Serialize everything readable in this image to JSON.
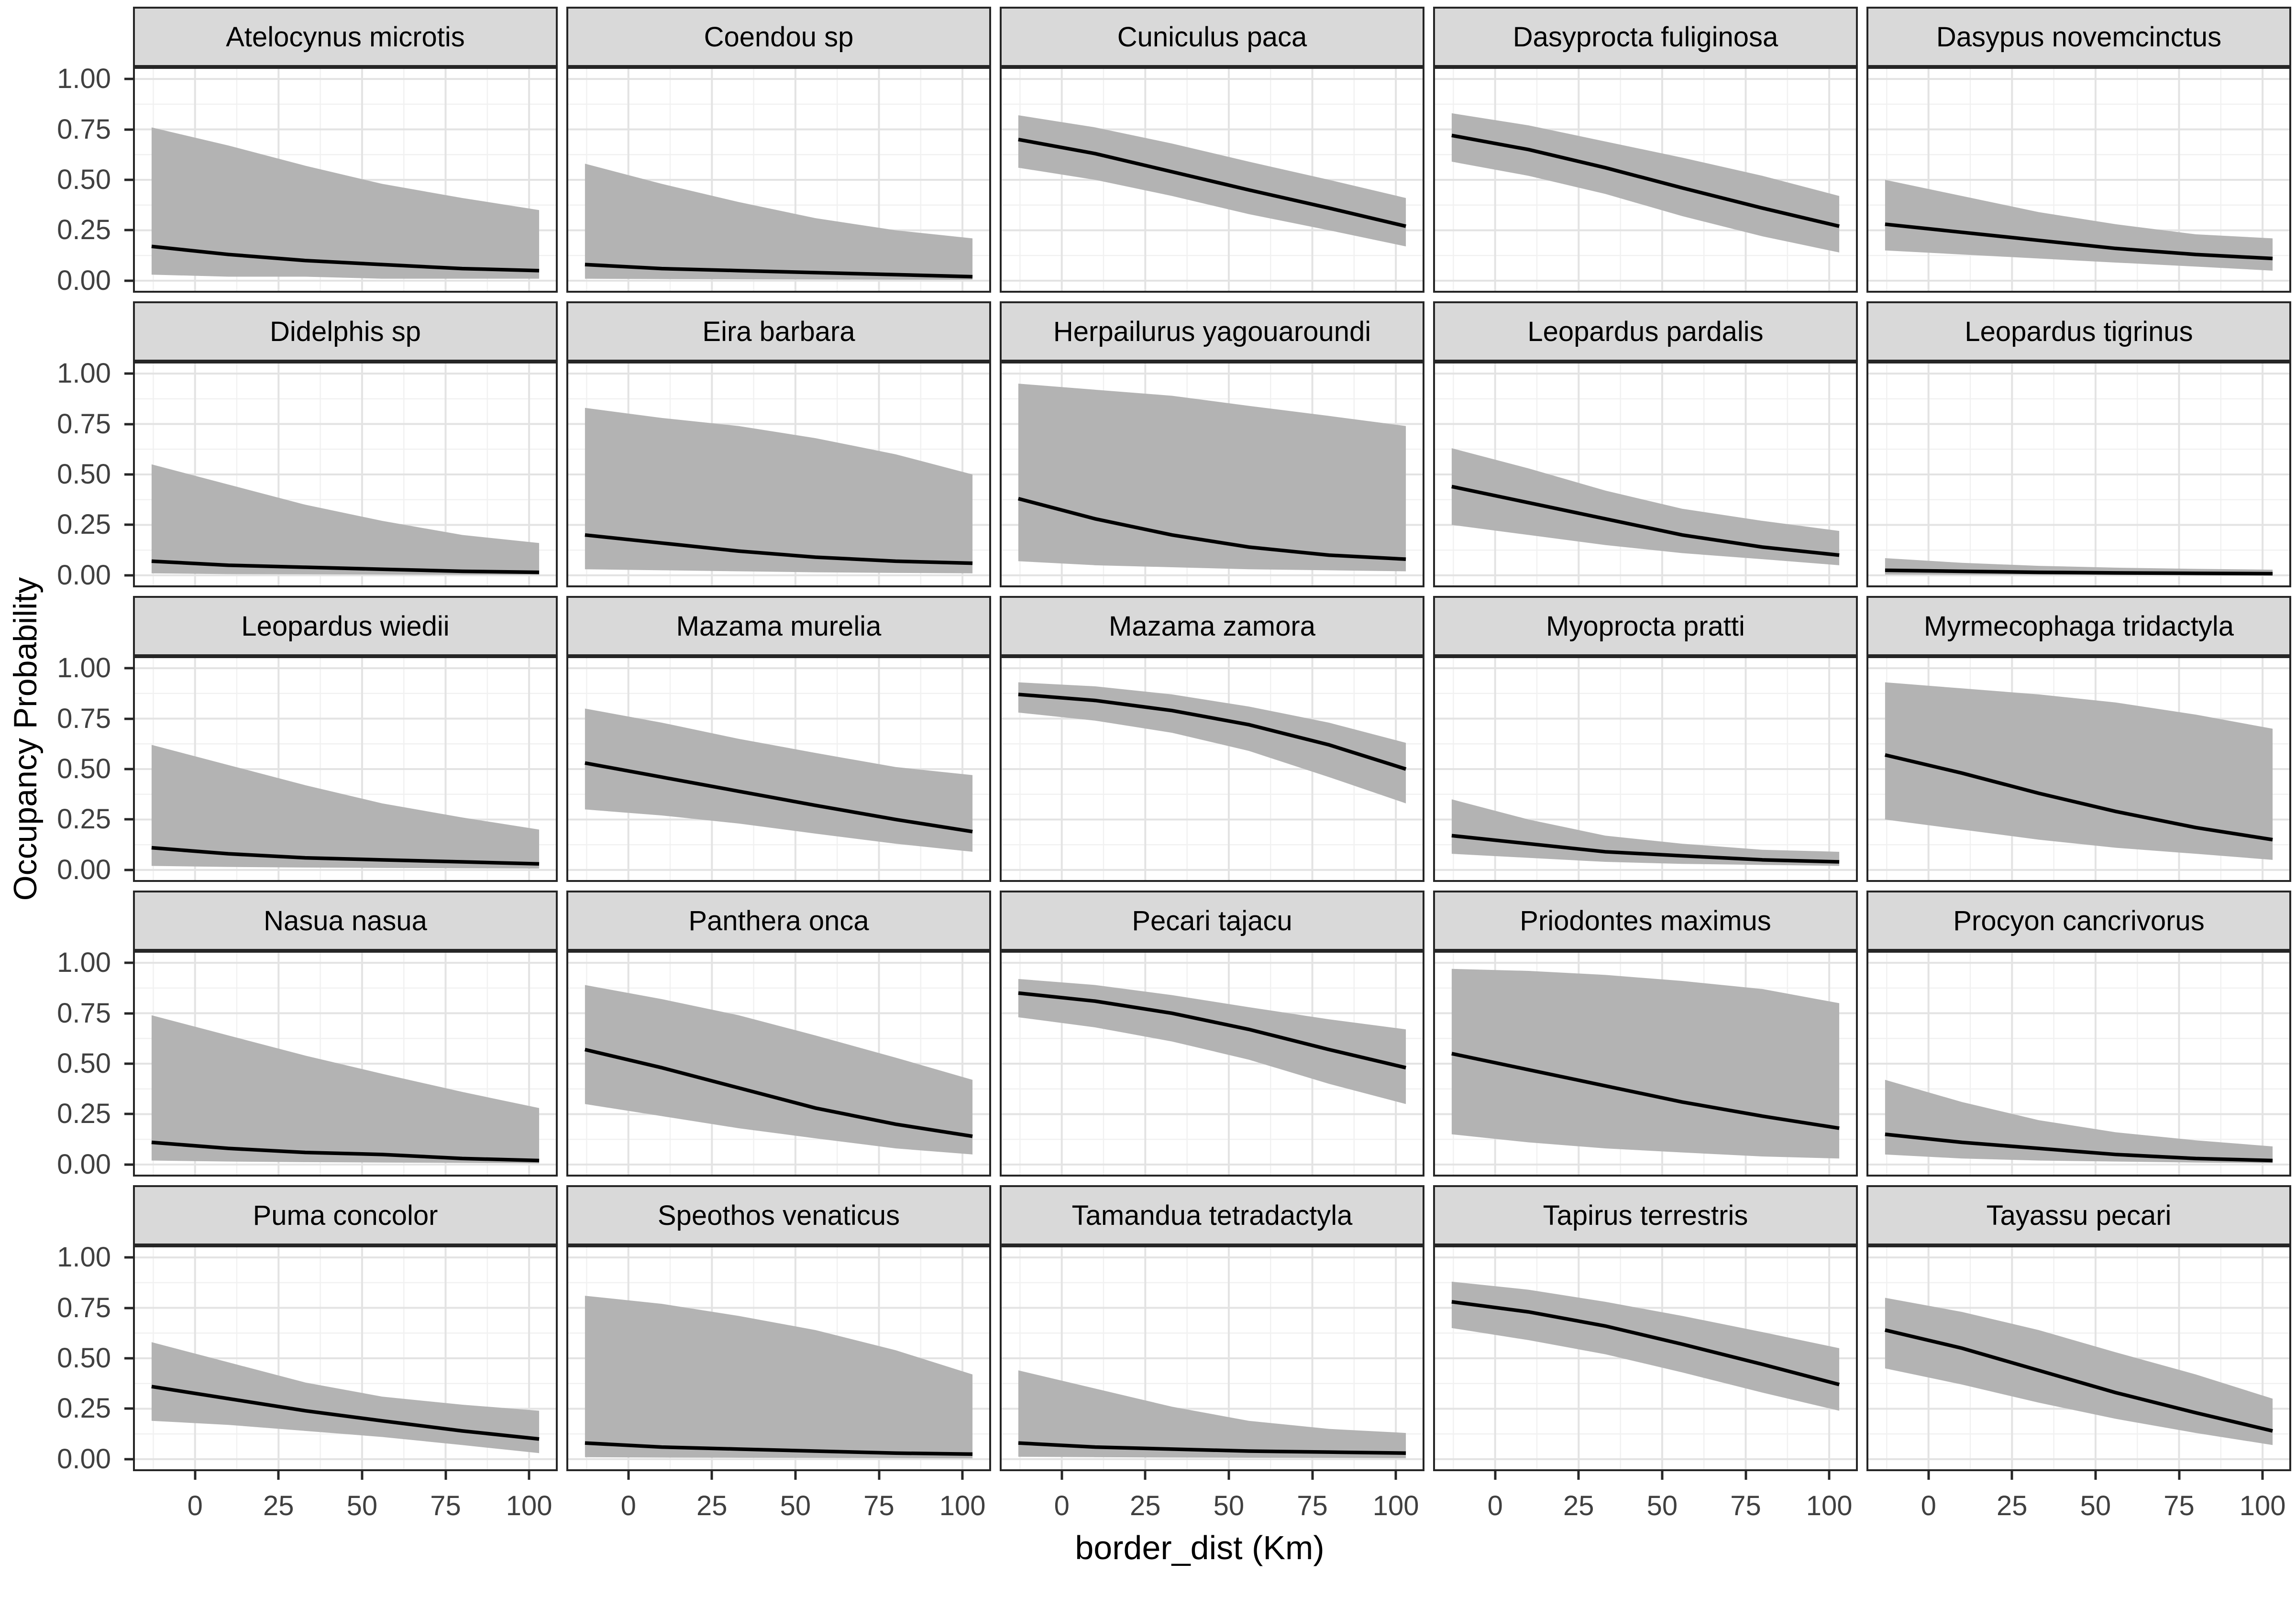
{
  "figure": {
    "y_axis_title": "Occupancy Probability",
    "x_axis_title": "border_dist (Km)",
    "y_ticks": [
      "1.00",
      "0.75",
      "0.50",
      "0.25",
      "0.00"
    ],
    "x_ticks": [
      "0",
      "25",
      "50",
      "75",
      "100"
    ],
    "colors": {
      "ribbon": "#b3b3b3",
      "mean_line": "#000000",
      "strip_bg": "#d9d9d9",
      "panel_border": "#262626",
      "grid_major": "#e3e3e3",
      "grid_minor": "#f1f1f1",
      "tick_label": "#404040"
    }
  },
  "chart_data": {
    "type": "area",
    "title": "",
    "xlabel": "border_dist (Km)",
    "ylabel": "Occupancy Probability",
    "x_axis_ticks": [
      0,
      25,
      50,
      75,
      100
    ],
    "y_axis_ticks": [
      0.0,
      0.25,
      0.5,
      0.75,
      1.0
    ],
    "xlim": [
      -18,
      108
    ],
    "ylim": [
      -0.05,
      1.05
    ],
    "grid": true,
    "legend": "none",
    "x": [
      -13,
      10,
      33,
      56,
      80,
      103
    ],
    "facets": [
      {
        "species": "Atelocynus microtis",
        "mean": [
          0.17,
          0.13,
          0.1,
          0.08,
          0.06,
          0.05
        ],
        "upper": [
          0.76,
          0.67,
          0.57,
          0.48,
          0.41,
          0.35
        ],
        "lower": [
          0.03,
          0.02,
          0.02,
          0.01,
          0.01,
          0.01
        ]
      },
      {
        "species": "Coendou sp",
        "mean": [
          0.08,
          0.06,
          0.05,
          0.04,
          0.03,
          0.02
        ],
        "upper": [
          0.58,
          0.48,
          0.39,
          0.31,
          0.25,
          0.21
        ],
        "lower": [
          0.01,
          0.008,
          0.007,
          0.006,
          0.005,
          0.005
        ]
      },
      {
        "species": "Cuniculus paca",
        "mean": [
          0.7,
          0.63,
          0.54,
          0.45,
          0.36,
          0.27
        ],
        "upper": [
          0.82,
          0.76,
          0.68,
          0.59,
          0.5,
          0.41
        ],
        "lower": [
          0.56,
          0.5,
          0.42,
          0.33,
          0.25,
          0.17
        ]
      },
      {
        "species": "Dasyprocta fuliginosa",
        "mean": [
          0.72,
          0.65,
          0.56,
          0.46,
          0.36,
          0.27
        ],
        "upper": [
          0.83,
          0.77,
          0.69,
          0.61,
          0.52,
          0.42
        ],
        "lower": [
          0.59,
          0.52,
          0.43,
          0.32,
          0.22,
          0.14
        ]
      },
      {
        "species": "Dasypus novemcinctus",
        "mean": [
          0.28,
          0.24,
          0.2,
          0.16,
          0.13,
          0.11
        ],
        "upper": [
          0.5,
          0.42,
          0.34,
          0.28,
          0.23,
          0.21
        ],
        "lower": [
          0.15,
          0.13,
          0.11,
          0.09,
          0.07,
          0.05
        ]
      },
      {
        "species": "Didelphis sp",
        "mean": [
          0.07,
          0.05,
          0.04,
          0.03,
          0.02,
          0.015
        ],
        "upper": [
          0.55,
          0.45,
          0.35,
          0.27,
          0.2,
          0.16
        ],
        "lower": [
          0.01,
          0.006,
          0.005,
          0.004,
          0.003,
          0.003
        ]
      },
      {
        "species": "Eira barbara",
        "mean": [
          0.2,
          0.16,
          0.12,
          0.09,
          0.07,
          0.06
        ],
        "upper": [
          0.83,
          0.78,
          0.74,
          0.68,
          0.6,
          0.5
        ],
        "lower": [
          0.03,
          0.025,
          0.02,
          0.015,
          0.012,
          0.01
        ]
      },
      {
        "species": "Herpailurus yagouaroundi",
        "mean": [
          0.38,
          0.28,
          0.2,
          0.14,
          0.1,
          0.08
        ],
        "upper": [
          0.95,
          0.92,
          0.89,
          0.84,
          0.79,
          0.74
        ],
        "lower": [
          0.07,
          0.05,
          0.04,
          0.03,
          0.025,
          0.02
        ]
      },
      {
        "species": "Leopardus pardalis",
        "mean": [
          0.44,
          0.36,
          0.28,
          0.2,
          0.14,
          0.1
        ],
        "upper": [
          0.63,
          0.53,
          0.42,
          0.33,
          0.27,
          0.22
        ],
        "lower": [
          0.25,
          0.2,
          0.15,
          0.11,
          0.08,
          0.05
        ]
      },
      {
        "species": "Leopardus tigrinus",
        "mean": [
          0.025,
          0.02,
          0.015,
          0.012,
          0.01,
          0.008
        ],
        "upper": [
          0.085,
          0.062,
          0.047,
          0.038,
          0.032,
          0.028
        ],
        "lower": [
          0.004,
          0.003,
          0.003,
          0.002,
          0.002,
          0.002
        ]
      },
      {
        "species": "Leopardus wiedii",
        "mean": [
          0.11,
          0.08,
          0.06,
          0.05,
          0.04,
          0.03
        ],
        "upper": [
          0.62,
          0.52,
          0.42,
          0.33,
          0.26,
          0.2
        ],
        "lower": [
          0.02,
          0.015,
          0.012,
          0.01,
          0.008,
          0.007
        ]
      },
      {
        "species": "Mazama murelia",
        "mean": [
          0.53,
          0.46,
          0.39,
          0.32,
          0.25,
          0.19
        ],
        "upper": [
          0.8,
          0.73,
          0.65,
          0.58,
          0.51,
          0.47
        ],
        "lower": [
          0.3,
          0.27,
          0.23,
          0.18,
          0.13,
          0.09
        ]
      },
      {
        "species": "Mazama zamora",
        "mean": [
          0.87,
          0.84,
          0.79,
          0.72,
          0.62,
          0.5
        ],
        "upper": [
          0.93,
          0.91,
          0.87,
          0.81,
          0.73,
          0.63
        ],
        "lower": [
          0.78,
          0.74,
          0.68,
          0.59,
          0.46,
          0.33
        ]
      },
      {
        "species": "Myoprocta pratti",
        "mean": [
          0.17,
          0.13,
          0.09,
          0.07,
          0.05,
          0.04
        ],
        "upper": [
          0.35,
          0.25,
          0.17,
          0.13,
          0.1,
          0.09
        ],
        "lower": [
          0.08,
          0.06,
          0.04,
          0.03,
          0.025,
          0.02
        ]
      },
      {
        "species": "Myrmecophaga tridactyla",
        "mean": [
          0.57,
          0.48,
          0.38,
          0.29,
          0.21,
          0.15
        ],
        "upper": [
          0.93,
          0.9,
          0.87,
          0.83,
          0.77,
          0.7
        ],
        "lower": [
          0.25,
          0.2,
          0.15,
          0.11,
          0.08,
          0.05
        ]
      },
      {
        "species": "Nasua nasua",
        "mean": [
          0.11,
          0.08,
          0.06,
          0.05,
          0.03,
          0.02
        ],
        "upper": [
          0.74,
          0.64,
          0.54,
          0.45,
          0.36,
          0.28
        ],
        "lower": [
          0.02,
          0.015,
          0.012,
          0.01,
          0.008,
          0.006
        ]
      },
      {
        "species": "Panthera onca",
        "mean": [
          0.57,
          0.48,
          0.38,
          0.28,
          0.2,
          0.14
        ],
        "upper": [
          0.89,
          0.82,
          0.74,
          0.64,
          0.53,
          0.42
        ],
        "lower": [
          0.3,
          0.24,
          0.18,
          0.13,
          0.08,
          0.05
        ]
      },
      {
        "species": "Pecari tajacu",
        "mean": [
          0.85,
          0.81,
          0.75,
          0.67,
          0.57,
          0.48
        ],
        "upper": [
          0.92,
          0.89,
          0.84,
          0.78,
          0.72,
          0.67
        ],
        "lower": [
          0.73,
          0.68,
          0.61,
          0.52,
          0.4,
          0.3
        ]
      },
      {
        "species": "Priodontes maximus",
        "mean": [
          0.55,
          0.47,
          0.39,
          0.31,
          0.24,
          0.18
        ],
        "upper": [
          0.97,
          0.96,
          0.94,
          0.91,
          0.87,
          0.8
        ],
        "lower": [
          0.15,
          0.11,
          0.08,
          0.06,
          0.04,
          0.03
        ]
      },
      {
        "species": "Procyon cancrivorus",
        "mean": [
          0.15,
          0.11,
          0.08,
          0.05,
          0.03,
          0.02
        ],
        "upper": [
          0.42,
          0.31,
          0.22,
          0.16,
          0.12,
          0.09
        ],
        "lower": [
          0.05,
          0.03,
          0.02,
          0.015,
          0.01,
          0.007
        ]
      },
      {
        "species": "Puma concolor",
        "mean": [
          0.36,
          0.3,
          0.24,
          0.19,
          0.14,
          0.1
        ],
        "upper": [
          0.58,
          0.48,
          0.38,
          0.31,
          0.27,
          0.24
        ],
        "lower": [
          0.19,
          0.17,
          0.14,
          0.11,
          0.07,
          0.03
        ]
      },
      {
        "species": "Speothos venaticus",
        "mean": [
          0.08,
          0.06,
          0.05,
          0.04,
          0.03,
          0.025
        ],
        "upper": [
          0.81,
          0.77,
          0.71,
          0.64,
          0.54,
          0.42
        ],
        "lower": [
          0.01,
          0.008,
          0.007,
          0.006,
          0.005,
          0.004
        ]
      },
      {
        "species": "Tamandua tetradactyla",
        "mean": [
          0.08,
          0.06,
          0.05,
          0.04,
          0.035,
          0.03
        ],
        "upper": [
          0.44,
          0.35,
          0.26,
          0.19,
          0.15,
          0.13
        ],
        "lower": [
          0.012,
          0.01,
          0.008,
          0.007,
          0.006,
          0.005
        ]
      },
      {
        "species": "Tapirus terrestris",
        "mean": [
          0.78,
          0.73,
          0.66,
          0.57,
          0.47,
          0.37
        ],
        "upper": [
          0.88,
          0.84,
          0.78,
          0.71,
          0.63,
          0.55
        ],
        "lower": [
          0.65,
          0.59,
          0.52,
          0.43,
          0.33,
          0.24
        ]
      },
      {
        "species": "Tayassu pecari",
        "mean": [
          0.64,
          0.55,
          0.44,
          0.33,
          0.23,
          0.14
        ],
        "upper": [
          0.8,
          0.73,
          0.64,
          0.53,
          0.42,
          0.3
        ],
        "lower": [
          0.45,
          0.37,
          0.28,
          0.2,
          0.13,
          0.07
        ]
      }
    ]
  }
}
